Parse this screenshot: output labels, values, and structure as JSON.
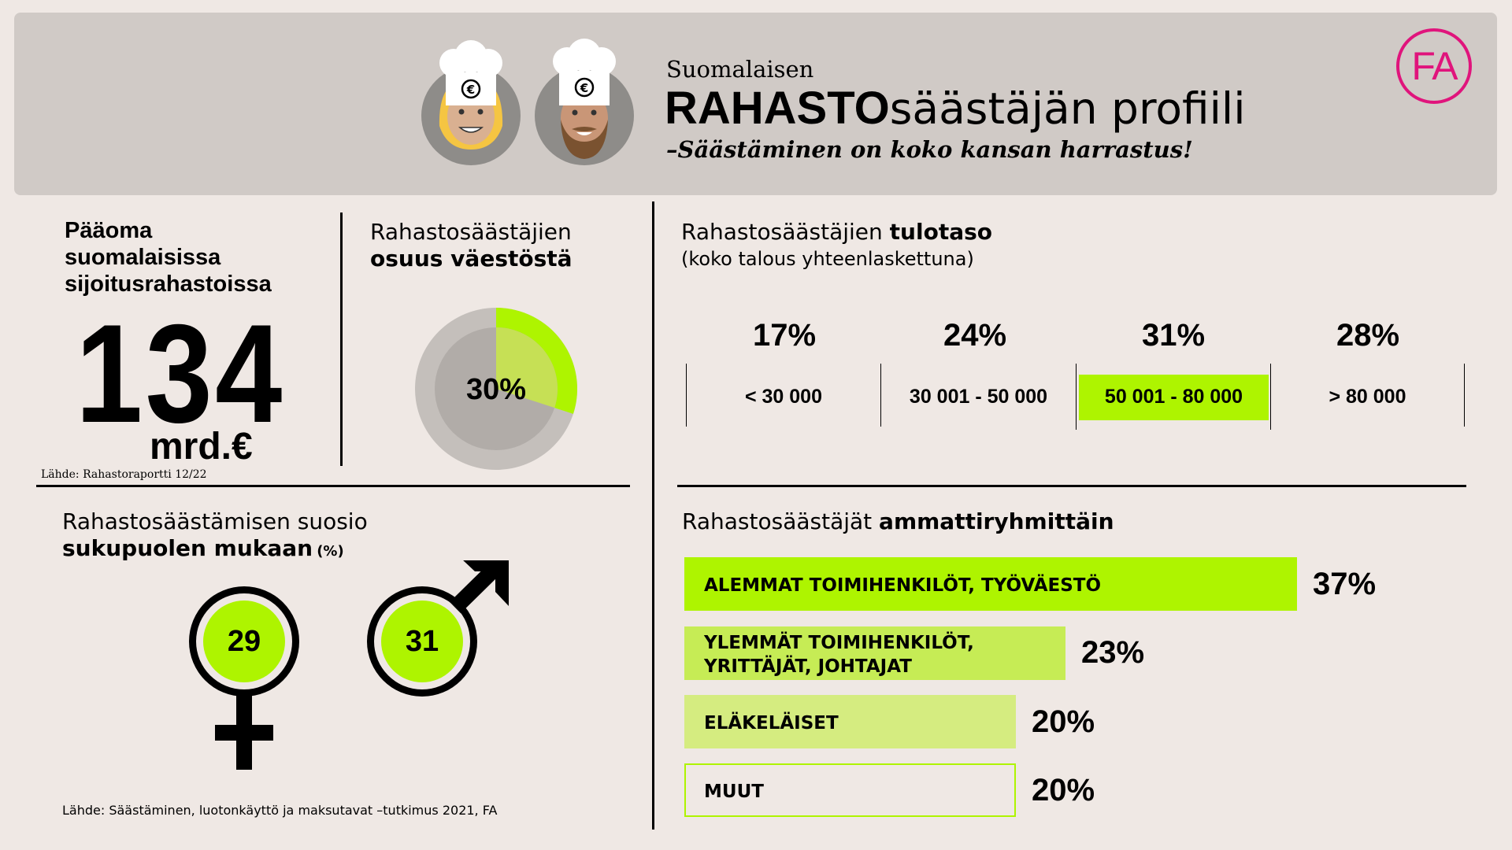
{
  "header": {
    "subtitle_small": "Suomalaisen",
    "title_bold": "RAHASTO",
    "title_rest": "säästäjän profiili",
    "tagline": "–Säästäminen on koko kansan harrastus!",
    "logo_text": "FA",
    "euro_symbol": "€"
  },
  "capital": {
    "heading": [
      "Pääoma",
      "suomalaisissa",
      "sijoitusrahastoissa"
    ],
    "value": "134",
    "unit": "mrd.€",
    "source": "Lähde: Rahastoraportti 12/22"
  },
  "population_share": {
    "heading_line1": "Rahastosäästäjien",
    "heading_line2": "osuus väestöstä",
    "value_label": "30%"
  },
  "income": {
    "heading_regular": "Rahastosäästäjien ",
    "heading_bold": "tulotaso",
    "subheading": "(koko talous yhteenlaskettuna)",
    "brackets": [
      {
        "pct": "17%",
        "label": "< 30 000"
      },
      {
        "pct": "24%",
        "label": "30 001 - 50 000"
      },
      {
        "pct": "31%",
        "label": "50 001 - 80 000"
      },
      {
        "pct": "28%",
        "label": "> 80 000"
      }
    ]
  },
  "gender": {
    "heading_regular": "Rahastosäästämisen suosio",
    "heading_bold": "sukupuolen mukaan",
    "heading_unit": "(%)",
    "female_value": "29",
    "male_value": "31",
    "source": "Lähde: Säästäminen, luotonkäyttö ja maksutavat –tutkimus 2021, FA"
  },
  "occupation": {
    "heading_regular": "Rahastosäästäjät ",
    "heading_bold": "ammattiryhmittäin",
    "bars": [
      {
        "label_lines": [
          "ALEMMAT TOIMIHENKILÖT, TYÖVÄESTÖ"
        ],
        "pct": "37%"
      },
      {
        "label_lines": [
          "YLEMMÄT TOIMIHENKILÖT,",
          "YRITTÄJÄT, JOHTAJAT"
        ],
        "pct": "23%"
      },
      {
        "label_lines": [
          "ELÄKELÄISET"
        ],
        "pct": "20%"
      },
      {
        "label_lines": [
          "MUUT"
        ],
        "pct": "20%"
      }
    ]
  },
  "colors": {
    "background": "#efe8e4",
    "header_bg": "#d0cac6",
    "accent_green": "#aef400",
    "green_mid": "#c6ec55",
    "green_light": "#d5ec80",
    "magenta": "#e0147c",
    "donut_gray": "#c4bfbb",
    "donut_inner": "#b1aca8"
  },
  "chart_data": [
    {
      "type": "pie",
      "title": "Rahastosäästäjien osuus väestöstä",
      "categories": [
        "Rahastosäästäjät"
      ],
      "values": [
        30
      ]
    },
    {
      "type": "bar",
      "title": "Rahastosäästäjien tulotaso",
      "categories": [
        "< 30 000",
        "30 001 - 50 000",
        "50 001 - 80 000",
        "> 80 000"
      ],
      "values": [
        17,
        24,
        31,
        28
      ]
    },
    {
      "type": "bar",
      "title": "Rahastosäästämisen suosio sukupuolen mukaan (%)",
      "categories": [
        "Naiset",
        "Miehet"
      ],
      "values": [
        29,
        31
      ]
    },
    {
      "type": "bar",
      "title": "Rahastosäästäjät ammattiryhmittäin",
      "categories": [
        "ALEMMAT TOIMIHENKILÖT, TYÖVÄESTÖ",
        "YLEMMÄT TOIMIHENKILÖT, YRITTÄJÄT, JOHTAJAT",
        "ELÄKELÄISET",
        "MUUT"
      ],
      "values": [
        37,
        23,
        20,
        20
      ]
    }
  ]
}
